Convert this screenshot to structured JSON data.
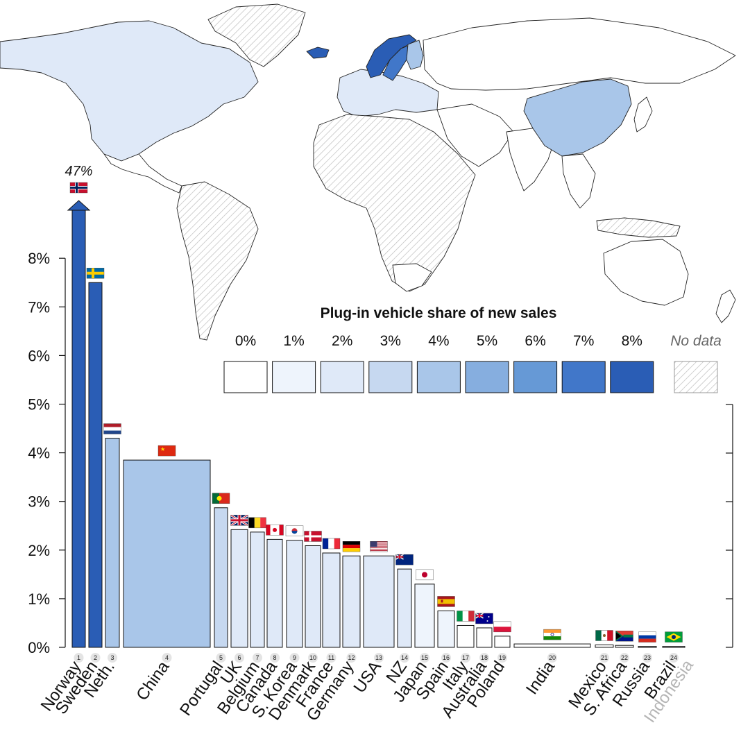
{
  "chart_data": {
    "type": "bar",
    "title": "",
    "xlabel": "",
    "ylabel": "",
    "ylim": [
      0,
      8
    ],
    "y_ticks": [
      "0%",
      "1%",
      "2%",
      "3%",
      "4%",
      "5%",
      "6%",
      "7%",
      "8%"
    ],
    "grid": false,
    "bar_width_encoding": "relative new-vehicle market size",
    "colors": {
      "0%": "#ffffff",
      "1%": "#eef4fc",
      "2%": "#dfe9f8",
      "3%": "#c6d8f0",
      "4%": "#a9c6e9",
      "5%": "#86aedf",
      "6%": "#6699d6",
      "7%": "#4177c9",
      "8%": "#2a5db5",
      "outline": "#111111",
      "no_data": "#cccccc"
    },
    "categories": [
      {
        "rank": "1",
        "name": "Norway",
        "value": 47.0,
        "label": "47%",
        "flag": "norway-flag"
      },
      {
        "rank": "2",
        "name": "Sweden",
        "value": 7.5,
        "flag": "sweden-flag"
      },
      {
        "rank": "3",
        "name": "Neth.",
        "value": 4.3,
        "flag": "netherlands-flag"
      },
      {
        "rank": "4",
        "name": "China",
        "value": 3.85,
        "flag": "china-flag"
      },
      {
        "rank": "5",
        "name": "Portugal",
        "value": 2.87,
        "flag": "portugal-flag"
      },
      {
        "rank": "6",
        "name": "UK",
        "value": 2.42,
        "flag": "uk-flag"
      },
      {
        "rank": "7",
        "name": "Belgium",
        "value": 2.37,
        "flag": "belgium-flag"
      },
      {
        "rank": "8",
        "name": "Canada",
        "value": 2.22,
        "flag": "canada-flag"
      },
      {
        "rank": "9",
        "name": "S. Korea",
        "value": 2.2,
        "flag": "south-korea-flag"
      },
      {
        "rank": "10",
        "name": "Denmark",
        "value": 2.09,
        "flag": "denmark-flag"
      },
      {
        "rank": "11",
        "name": "France",
        "value": 1.94,
        "flag": "france-flag"
      },
      {
        "rank": "12",
        "name": "Germany",
        "value": 1.88,
        "flag": "germany-flag"
      },
      {
        "rank": "13",
        "name": "USA",
        "value": 1.88,
        "flag": "usa-flag"
      },
      {
        "rank": "14",
        "name": "NZ",
        "value": 1.61,
        "flag": "new-zealand-flag"
      },
      {
        "rank": "15",
        "name": "Japan",
        "value": 1.3,
        "flag": "japan-flag"
      },
      {
        "rank": "16",
        "name": "Spain",
        "value": 0.75,
        "flag": "spain-flag"
      },
      {
        "rank": "17",
        "name": "Italy",
        "value": 0.45,
        "flag": "italy-flag"
      },
      {
        "rank": "18",
        "name": "Australia",
        "value": 0.4,
        "flag": "australia-flag"
      },
      {
        "rank": "19",
        "name": "Poland",
        "value": 0.23,
        "flag": "poland-flag"
      },
      {
        "rank": "20",
        "name": "India",
        "value": 0.07,
        "flag": "india-flag"
      },
      {
        "rank": "21",
        "name": "Mexico",
        "value": 0.05,
        "flag": "mexico-flag"
      },
      {
        "rank": "22",
        "name": "S. Africa",
        "value": 0.04,
        "flag": "south-africa-flag"
      },
      {
        "rank": "23",
        "name": "Russia",
        "value": 0.02,
        "flag": "russia-flag"
      },
      {
        "rank": "24",
        "name": "Brazil",
        "value": 0.02,
        "flag": "brazil-flag"
      },
      {
        "rank": "",
        "name": "Indonesia",
        "value": null,
        "flag": "",
        "no_data": true
      }
    ],
    "legend": {
      "title": "Plug-in vehicle share of new sales",
      "items": [
        "0%",
        "1%",
        "2%",
        "3%",
        "4%",
        "5%",
        "6%",
        "7%",
        "8%"
      ],
      "no_data_label": "No data",
      "placement": "center-right"
    },
    "map": {
      "description_hidden": true,
      "shaded_regions": [
        {
          "region": "norway-region",
          "value": 8
        },
        {
          "region": "sweden-region",
          "value": 7
        },
        {
          "region": "iceland-region",
          "value": 8
        },
        {
          "region": "finland-region",
          "value": 4
        },
        {
          "region": "north-america-region",
          "value": 2
        },
        {
          "region": "china-region",
          "value": 4
        },
        {
          "region": "europe-region",
          "value": 2
        }
      ]
    }
  }
}
